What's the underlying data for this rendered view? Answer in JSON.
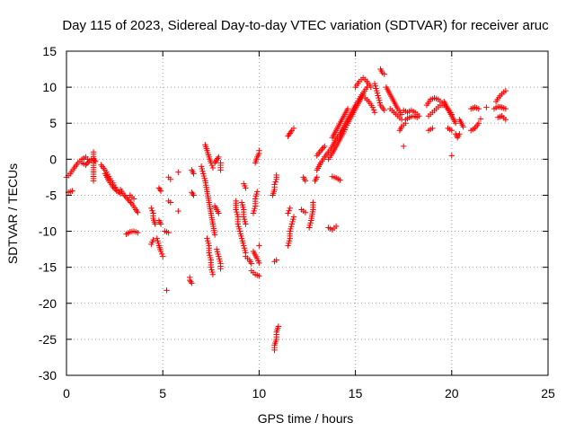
{
  "chart_data": {
    "type": "scatter",
    "title": "Day 115 of 2023, Sidereal Day-to-day VTEC variation (SDTVAR) for receiver aruc",
    "xlabel": "GPS time / hours",
    "ylabel": "SDTVAR / TECUs",
    "xlim": [
      0,
      25
    ],
    "ylim": [
      -30,
      15
    ],
    "x_ticks": [
      0,
      5,
      10,
      15,
      20,
      25
    ],
    "y_ticks": [
      -30,
      -25,
      -20,
      -15,
      -10,
      -5,
      0,
      5,
      10,
      15
    ],
    "grid": true,
    "marker": "+",
    "color": "#ff0000",
    "segments": [
      [
        [
          0.0,
          -2.5
        ],
        [
          0.2,
          -2.0
        ],
        [
          0.4,
          -1.2
        ],
        [
          0.6,
          -0.5
        ],
        [
          0.8,
          0.0
        ],
        [
          1.0,
          0.3
        ],
        [
          1.1,
          0.0
        ]
      ],
      [
        [
          0.1,
          -4.6
        ],
        [
          0.3,
          -4.4
        ]
      ],
      [
        [
          0.8,
          -0.5
        ],
        [
          1.0,
          -0.8
        ],
        [
          1.2,
          -0.2
        ],
        [
          1.4,
          0.1
        ],
        [
          1.5,
          -0.3
        ]
      ],
      [
        [
          1.4,
          1.0
        ],
        [
          1.4,
          -3.0
        ]
      ],
      [
        [
          1.8,
          -0.8
        ],
        [
          2.0,
          -1.5
        ],
        [
          2.2,
          -2.4
        ],
        [
          2.4,
          -3.3
        ],
        [
          2.6,
          -4.2
        ],
        [
          2.8,
          -4.8
        ]
      ],
      [
        [
          2.0,
          -2.0
        ],
        [
          2.2,
          -3.0
        ],
        [
          2.4,
          -3.8
        ],
        [
          2.6,
          -4.4
        ]
      ],
      [
        [
          2.8,
          -4.2
        ],
        [
          3.0,
          -5.0
        ],
        [
          3.2,
          -5.6
        ],
        [
          3.4,
          -6.2
        ],
        [
          3.6,
          -7.0
        ],
        [
          3.7,
          -7.4
        ]
      ],
      [
        [
          3.1,
          -10.4
        ],
        [
          3.3,
          -10.1
        ],
        [
          3.5,
          -10.0
        ],
        [
          3.7,
          -10.2
        ]
      ],
      [
        [
          3.3,
          -5.0
        ],
        [
          3.5,
          -5.5
        ]
      ],
      [
        [
          4.4,
          -6.8
        ],
        [
          4.5,
          -7.5
        ],
        [
          4.5,
          -8.2
        ],
        [
          4.6,
          -9.0
        ]
      ],
      [
        [
          4.4,
          -11.8
        ],
        [
          4.5,
          -11.2
        ]
      ],
      [
        [
          4.8,
          -8.5
        ],
        [
          4.9,
          -9.0
        ]
      ],
      [
        [
          4.7,
          -11.0
        ],
        [
          4.8,
          -12.0
        ],
        [
          4.9,
          -12.8
        ],
        [
          5.0,
          -13.5
        ]
      ],
      [
        [
          4.8,
          -4.0
        ],
        [
          4.9,
          -4.4
        ]
      ],
      [
        [
          5.2,
          -18.2
        ]
      ],
      [
        [
          5.1,
          -10.0
        ],
        [
          5.3,
          -10.2
        ]
      ],
      [
        [
          5.3,
          -2.5
        ],
        [
          5.4,
          -2.8
        ]
      ],
      [
        [
          5.3,
          -5.8
        ],
        [
          5.4,
          -6.0
        ]
      ],
      [
        [
          5.8,
          -1.8
        ]
      ],
      [
        [
          5.8,
          -7.2
        ]
      ],
      [
        [
          6.4,
          -16.4
        ],
        [
          6.4,
          -16.8
        ],
        [
          6.5,
          -17.2
        ]
      ],
      [
        [
          6.5,
          -1.5
        ],
        [
          6.6,
          -2.0
        ]
      ],
      [
        [
          6.5,
          -4.6
        ],
        [
          6.6,
          -5.0
        ]
      ],
      [
        [
          7.2,
          2.0
        ],
        [
          7.3,
          1.2
        ],
        [
          7.4,
          0.3
        ],
        [
          7.5,
          -0.5
        ],
        [
          7.6,
          -1.2
        ]
      ],
      [
        [
          7.0,
          -1.0
        ],
        [
          7.1,
          -2.0
        ],
        [
          7.2,
          -3.0
        ],
        [
          7.3,
          -4.5
        ],
        [
          7.4,
          -6.0
        ],
        [
          7.5,
          -7.5
        ],
        [
          7.6,
          -9.0
        ],
        [
          7.7,
          -10.5
        ]
      ],
      [
        [
          7.3,
          -11.0
        ],
        [
          7.4,
          -12.0
        ],
        [
          7.4,
          -13.0
        ],
        [
          7.5,
          -14.0
        ],
        [
          7.5,
          -15.0
        ],
        [
          7.6,
          -16.0
        ]
      ],
      [
        [
          7.7,
          -0.5
        ],
        [
          7.8,
          -0.1
        ],
        [
          7.9,
          0.3
        ]
      ],
      [
        [
          7.8,
          -12.5
        ],
        [
          7.9,
          -13.5
        ],
        [
          8.0,
          -14.5
        ],
        [
          8.0,
          -15.2
        ]
      ],
      [
        [
          7.7,
          -6.5
        ],
        [
          7.9,
          -7.5
        ]
      ],
      [
        [
          8.0,
          -1.5
        ],
        [
          8.0,
          -0.5
        ]
      ],
      [
        [
          8.8,
          -5.8
        ],
        [
          8.8,
          -7.0
        ],
        [
          8.9,
          -8.0
        ],
        [
          8.9,
          -9.0
        ],
        [
          9.0,
          -10.0
        ],
        [
          9.1,
          -11.0
        ],
        [
          9.2,
          -12.0
        ],
        [
          9.3,
          -13.0
        ]
      ],
      [
        [
          9.1,
          -6.0
        ],
        [
          9.2,
          -7.0
        ],
        [
          9.2,
          -8.0
        ],
        [
          9.3,
          -9.0
        ]
      ],
      [
        [
          9.3,
          -13.5
        ],
        [
          9.5,
          -14.0
        ],
        [
          9.6,
          -14.5
        ]
      ],
      [
        [
          9.2,
          -3.4
        ],
        [
          9.3,
          -4.0
        ]
      ],
      [
        [
          9.7,
          -7.5
        ],
        [
          9.8,
          -6.5
        ],
        [
          9.8,
          -5.5
        ],
        [
          9.9,
          -4.5
        ]
      ],
      [
        [
          9.6,
          -15.5
        ],
        [
          9.8,
          -16.0
        ],
        [
          10.0,
          -16.2
        ]
      ],
      [
        [
          9.7,
          -12.8
        ],
        [
          9.9,
          -13.8
        ],
        [
          10.0,
          -14.4
        ]
      ],
      [
        [
          9.8,
          -0.5
        ],
        [
          9.9,
          0.3
        ],
        [
          10.0,
          0.8
        ],
        [
          10.0,
          1.2
        ]
      ],
      [
        [
          10.0,
          -12.0
        ]
      ],
      [
        [
          10.8,
          -26.5
        ],
        [
          10.8,
          -25.8
        ],
        [
          10.9,
          -25.0
        ],
        [
          10.9,
          -24.0
        ],
        [
          11.0,
          -23.2
        ]
      ],
      [
        [
          10.8,
          -14.2
        ],
        [
          10.9,
          -14.0
        ]
      ],
      [
        [
          10.7,
          -5.0
        ],
        [
          10.8,
          -4.2
        ],
        [
          10.8,
          -3.5
        ],
        [
          10.9,
          -2.8
        ],
        [
          10.9,
          -2.2
        ]
      ],
      [
        [
          11.5,
          -12.0
        ],
        [
          11.6,
          -11.0
        ],
        [
          11.6,
          -10.0
        ],
        [
          11.7,
          -9.0
        ],
        [
          11.8,
          -8.0
        ]
      ],
      [
        [
          11.5,
          -7.5
        ],
        [
          11.6,
          -6.8
        ]
      ],
      [
        [
          11.5,
          3.2
        ],
        [
          11.6,
          3.6
        ],
        [
          11.7,
          4.0
        ],
        [
          11.8,
          4.3
        ]
      ],
      [
        [
          12.3,
          -2.5
        ],
        [
          12.4,
          -3.0
        ]
      ],
      [
        [
          12.2,
          -7.0
        ],
        [
          12.4,
          -7.4
        ]
      ],
      [
        [
          12.6,
          -9.5
        ],
        [
          12.7,
          -8.5
        ],
        [
          12.8,
          -7.0
        ],
        [
          12.8,
          -6.0
        ]
      ],
      [
        [
          12.9,
          -3.0
        ],
        [
          13.0,
          -2.5
        ]
      ],
      [
        [
          13.0,
          0.5
        ],
        [
          13.2,
          1.2
        ],
        [
          13.4,
          1.8
        ]
      ],
      [
        [
          13.0,
          -1.5
        ],
        [
          13.2,
          -0.5
        ],
        [
          13.4,
          0.3
        ],
        [
          13.6,
          1.0
        ],
        [
          13.8,
          1.8
        ],
        [
          14.0,
          2.8
        ],
        [
          14.2,
          3.5
        ],
        [
          14.4,
          4.5
        ],
        [
          14.6,
          5.5
        ],
        [
          14.8,
          6.5
        ],
        [
          15.0,
          7.5
        ],
        [
          15.2,
          8.4
        ],
        [
          15.4,
          9.2
        ],
        [
          15.6,
          10.0
        ]
      ],
      [
        [
          13.6,
          0.0
        ],
        [
          13.8,
          0.8
        ],
        [
          14.0,
          1.8
        ],
        [
          14.2,
          2.8
        ],
        [
          14.4,
          3.8
        ],
        [
          14.6,
          5.0
        ],
        [
          14.8,
          6.0
        ],
        [
          15.0,
          7.0
        ],
        [
          15.2,
          8.0
        ],
        [
          15.4,
          9.0
        ]
      ],
      [
        [
          13.6,
          -9.5
        ],
        [
          13.8,
          -9.8
        ],
        [
          14.0,
          -9.3
        ]
      ],
      [
        [
          13.8,
          -2.4
        ],
        [
          14.0,
          -2.6
        ],
        [
          14.2,
          -2.9
        ]
      ],
      [
        [
          13.8,
          3.0
        ],
        [
          14.0,
          4.0
        ],
        [
          14.2,
          5.0
        ],
        [
          14.4,
          6.0
        ],
        [
          14.6,
          7.0
        ]
      ],
      [
        [
          15.0,
          10.0
        ],
        [
          15.2,
          10.8
        ],
        [
          15.4,
          11.3
        ],
        [
          15.6,
          10.8
        ],
        [
          15.8,
          10.0
        ]
      ],
      [
        [
          15.5,
          8.5
        ],
        [
          15.7,
          8.0
        ],
        [
          15.9,
          7.2
        ],
        [
          16.0,
          6.5
        ]
      ],
      [
        [
          16.0,
          10.5
        ],
        [
          16.1,
          9.5
        ],
        [
          16.2,
          8.5
        ],
        [
          16.3,
          7.5
        ],
        [
          16.5,
          6.8
        ]
      ],
      [
        [
          16.3,
          12.5
        ],
        [
          16.4,
          12.0
        ],
        [
          16.5,
          11.8
        ]
      ],
      [
        [
          16.6,
          10.0
        ],
        [
          16.8,
          9.0
        ],
        [
          17.0,
          8.0
        ],
        [
          17.2,
          7.0
        ],
        [
          17.4,
          6.2
        ]
      ],
      [
        [
          16.8,
          7.0
        ],
        [
          17.0,
          6.5
        ],
        [
          17.2,
          6.0
        ],
        [
          17.4,
          5.5
        ]
      ],
      [
        [
          17.5,
          6.8
        ],
        [
          17.7,
          6.5
        ],
        [
          17.9,
          6.8
        ],
        [
          18.1,
          6.5
        ],
        [
          18.3,
          6.0
        ]
      ],
      [
        [
          17.6,
          5.5
        ],
        [
          17.8,
          5.8
        ],
        [
          18.0,
          6.0
        ],
        [
          18.2,
          5.8
        ]
      ],
      [
        [
          17.3,
          4.0
        ],
        [
          17.4,
          4.5
        ],
        [
          17.6,
          5.0
        ]
      ],
      [
        [
          17.5,
          1.8
        ]
      ],
      [
        [
          18.7,
          7.5
        ],
        [
          18.9,
          8.3
        ],
        [
          19.1,
          8.5
        ],
        [
          19.3,
          8.3
        ],
        [
          19.5,
          7.8
        ]
      ],
      [
        [
          18.8,
          6.0
        ],
        [
          19.0,
          6.5
        ],
        [
          19.2,
          7.0
        ],
        [
          19.4,
          7.5
        ],
        [
          19.6,
          7.5
        ],
        [
          19.8,
          7.0
        ],
        [
          20.0,
          6.2
        ]
      ],
      [
        [
          19.6,
          8.0
        ],
        [
          19.8,
          7.0
        ],
        [
          20.0,
          6.0
        ],
        [
          20.2,
          5.0
        ]
      ],
      [
        [
          18.8,
          4.0
        ],
        [
          19.0,
          4.3
        ]
      ],
      [
        [
          19.8,
          4.3
        ],
        [
          20.0,
          4.0
        ]
      ],
      [
        [
          20.2,
          3.5
        ],
        [
          20.3,
          3.0
        ],
        [
          20.4,
          3.5
        ]
      ],
      [
        [
          20.4,
          5.5
        ],
        [
          20.5,
          5.0
        ],
        [
          20.6,
          4.5
        ]
      ],
      [
        [
          20.0,
          0.5
        ]
      ],
      [
        [
          21.0,
          4.0
        ],
        [
          21.2,
          4.3
        ],
        [
          21.4,
          5.0
        ]
      ],
      [
        [
          21.0,
          7.0
        ],
        [
          21.2,
          7.2
        ],
        [
          21.4,
          7.0
        ]
      ],
      [
        [
          21.5,
          5.6
        ]
      ],
      [
        [
          21.8,
          7.2
        ]
      ],
      [
        [
          22.3,
          8.0
        ],
        [
          22.5,
          8.8
        ],
        [
          22.7,
          9.3
        ],
        [
          22.8,
          9.5
        ]
      ],
      [
        [
          22.4,
          5.8
        ],
        [
          22.6,
          6.0
        ],
        [
          22.8,
          5.5
        ]
      ],
      [
        [
          22.2,
          7.0
        ],
        [
          22.4,
          7.3
        ],
        [
          22.6,
          7.2
        ],
        [
          22.8,
          7.0
        ]
      ]
    ]
  }
}
